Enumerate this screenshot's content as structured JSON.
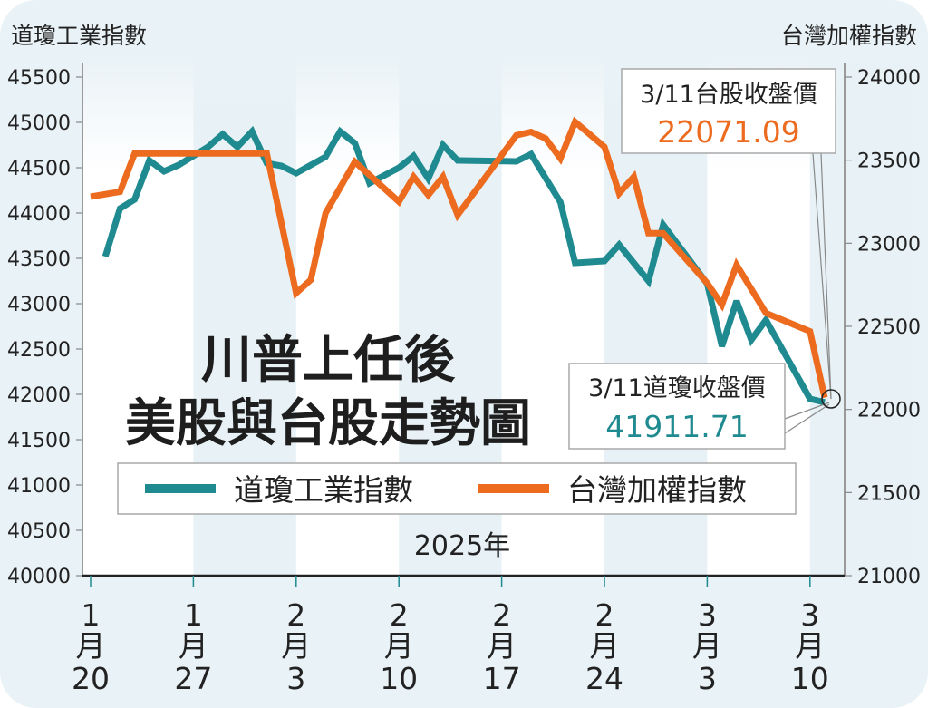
{
  "chart_data": {
    "type": "line",
    "title": [
      "川普上任後",
      "美股與台股走勢圖"
    ],
    "xlabel": "2025年",
    "ylabel_left": "道瓊工業指數",
    "ylabel_right": "台灣加權指數",
    "ylim_left": [
      40000,
      45500
    ],
    "ylim_right": [
      21000,
      24000
    ],
    "yticks_left": [
      "45500",
      "45000",
      "44500",
      "44000",
      "43500",
      "43000",
      "42500",
      "42000",
      "41500",
      "41000",
      "40500",
      "40000"
    ],
    "yticks_right": [
      "24000",
      "23500",
      "23000",
      "22500",
      "22000",
      "21500",
      "21000"
    ],
    "xticks": [
      {
        "month": "1",
        "unit": "月",
        "day": "20",
        "date": "1/20"
      },
      {
        "month": "1",
        "unit": "月",
        "day": "27",
        "date": "1/27"
      },
      {
        "month": "2",
        "unit": "月",
        "day": "3",
        "date": "2/3"
      },
      {
        "month": "2",
        "unit": "月",
        "day": "10",
        "date": "2/10"
      },
      {
        "month": "2",
        "unit": "月",
        "day": "17",
        "date": "2/17"
      },
      {
        "month": "2",
        "unit": "月",
        "day": "24",
        "date": "2/24"
      },
      {
        "month": "3",
        "unit": "月",
        "day": "3",
        "date": "3/3"
      },
      {
        "month": "3",
        "unit": "月",
        "day": "10",
        "date": "3/10"
      }
    ],
    "grid": false,
    "legend_position": "center",
    "series": [
      {
        "name": "道瓊工業指數",
        "axis": "left",
        "color": "#1f8a8f",
        "points": [
          [
            "1/21",
            43520
          ],
          [
            "1/22",
            44050
          ],
          [
            "1/23",
            44150
          ],
          [
            "1/24",
            44580
          ],
          [
            "1/25",
            44460
          ],
          [
            "1/26",
            44530
          ],
          [
            "1/27",
            44630
          ],
          [
            "1/28",
            44730
          ],
          [
            "1/29",
            44870
          ],
          [
            "1/30",
            44730
          ],
          [
            "1/31",
            44900
          ],
          [
            "2/1",
            44550
          ],
          [
            "2/2",
            44520
          ],
          [
            "2/3",
            44440
          ],
          [
            "2/5",
            44620
          ],
          [
            "2/6",
            44900
          ],
          [
            "2/7",
            44770
          ],
          [
            "2/8",
            44330
          ],
          [
            "2/10",
            44500
          ],
          [
            "2/11",
            44630
          ],
          [
            "2/12",
            44380
          ],
          [
            "2/13",
            44750
          ],
          [
            "2/14",
            44580
          ],
          [
            "2/18",
            44570
          ],
          [
            "2/19",
            44650
          ],
          [
            "2/21",
            44120
          ],
          [
            "2/22",
            43450
          ],
          [
            "2/24",
            43470
          ],
          [
            "2/25",
            43650
          ],
          [
            "2/27",
            43250
          ],
          [
            "2/28",
            43870
          ],
          [
            "3/3",
            43220
          ],
          [
            "3/4",
            42530
          ],
          [
            "3/5",
            43030
          ],
          [
            "3/6",
            42600
          ],
          [
            "3/7",
            42820
          ],
          [
            "3/10",
            41950
          ],
          [
            "3/11",
            41911.71
          ]
        ]
      },
      {
        "name": "台灣加權指數",
        "axis": "right",
        "color": "#ec6b1f",
        "points": [
          [
            "1/20",
            23280
          ],
          [
            "1/22",
            23310
          ],
          [
            "1/23",
            23540
          ],
          [
            "2/1",
            23540
          ],
          [
            "2/3",
            22700
          ],
          [
            "2/4",
            22780
          ],
          [
            "2/5",
            23180
          ],
          [
            "2/7",
            23490
          ],
          [
            "2/10",
            23250
          ],
          [
            "2/11",
            23400
          ],
          [
            "2/12",
            23290
          ],
          [
            "2/13",
            23400
          ],
          [
            "2/14",
            23170
          ],
          [
            "2/18",
            23650
          ],
          [
            "2/19",
            23670
          ],
          [
            "2/20",
            23630
          ],
          [
            "2/21",
            23510
          ],
          [
            "2/22",
            23730
          ],
          [
            "2/24",
            23580
          ],
          [
            "2/25",
            23300
          ],
          [
            "2/26",
            23400
          ],
          [
            "2/27",
            23060
          ],
          [
            "2/28",
            23060
          ],
          [
            "3/3",
            22760
          ],
          [
            "3/4",
            22630
          ],
          [
            "3/5",
            22870
          ],
          [
            "3/7",
            22580
          ],
          [
            "3/10",
            22470
          ],
          [
            "3/11",
            22071.09
          ]
        ]
      }
    ],
    "annotations": [
      {
        "label": "3/11台股收盤價",
        "value": "22071.09",
        "color": "#ec6b1f"
      },
      {
        "label": "3/11道瓊收盤價",
        "value": "41911.71",
        "color": "#1f8a8f"
      }
    ]
  }
}
